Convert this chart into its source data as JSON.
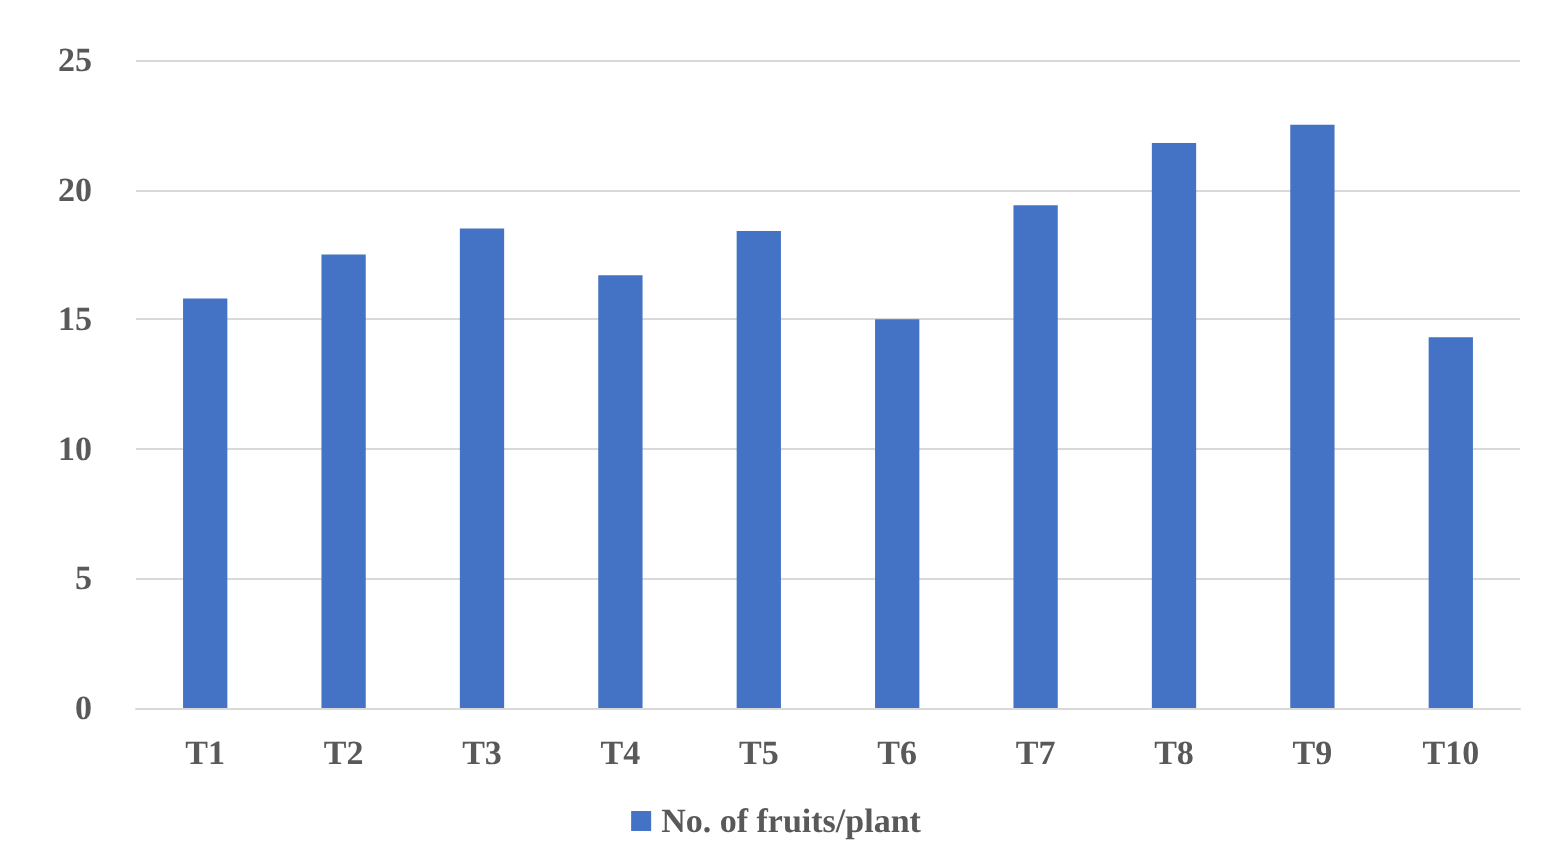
{
  "chart_data": {
    "type": "bar",
    "categories": [
      "T1",
      "T2",
      "T3",
      "T4",
      "T5",
      "T6",
      "T7",
      "T8",
      "T9",
      "T10"
    ],
    "series": [
      {
        "name": "No. of fruits/plant",
        "color": "#4472c4",
        "values": [
          15.8,
          17.5,
          18.5,
          16.7,
          18.4,
          15,
          19.4,
          21.8,
          22.5,
          14.3
        ]
      }
    ],
    "ylim": [
      0,
      25
    ],
    "yticks": [
      0,
      5,
      10,
      15,
      20,
      25
    ],
    "grid": "y",
    "legend": "bottom"
  }
}
